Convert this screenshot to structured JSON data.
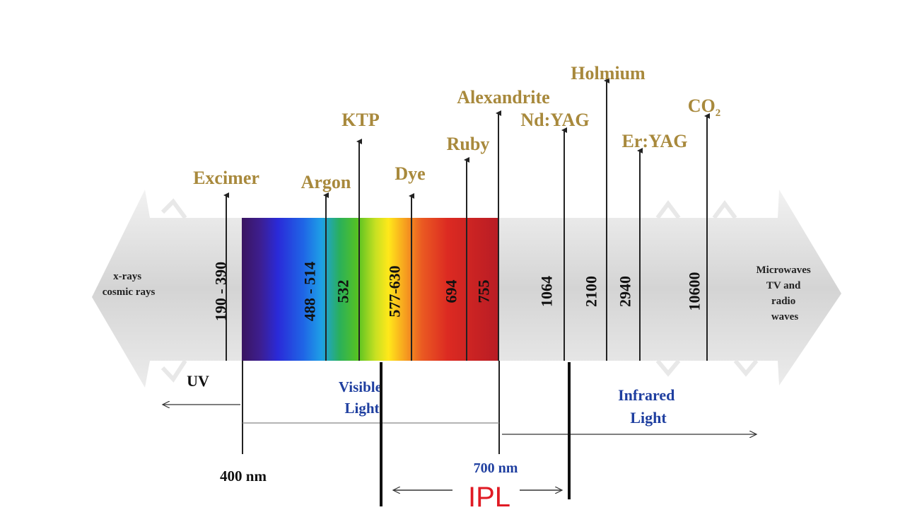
{
  "colors": {
    "laser_label": "#a8893c",
    "region_label": "#1f3fa0",
    "ipl": "#e01b24",
    "dark": "#111111",
    "band_gray": "#dcdcdc"
  },
  "lasers": [
    {
      "name": "Excimer",
      "wavelength": "190 - 390"
    },
    {
      "name": "Argon",
      "wavelength": "488 - 514"
    },
    {
      "name": "KTP",
      "wavelength": "532"
    },
    {
      "name": "Dye",
      "wavelength": "577-630"
    },
    {
      "name": "Ruby",
      "wavelength": "694"
    },
    {
      "name": "Alexandrite",
      "wavelength": "755"
    },
    {
      "name": "Nd:YAG",
      "wavelength": "1064"
    },
    {
      "name": "Holmium",
      "wavelength": "2100"
    },
    {
      "name": "Er:YAG",
      "wavelength": "2940"
    },
    {
      "name": "CO",
      "subscript": "2",
      "wavelength": "10600"
    }
  ],
  "ends": {
    "left_lines": [
      "x-rays",
      "cosmic rays"
    ],
    "right_lines": [
      "Microwaves",
      "TV and",
      "radio",
      "waves"
    ]
  },
  "regions": {
    "uv": "UV",
    "visible_lines": [
      "Visible",
      "Light"
    ],
    "infrared_lines": [
      "Infrared",
      "Light"
    ],
    "nm400": "400 nm",
    "nm700": "700 nm",
    "ipl": "IPL"
  }
}
